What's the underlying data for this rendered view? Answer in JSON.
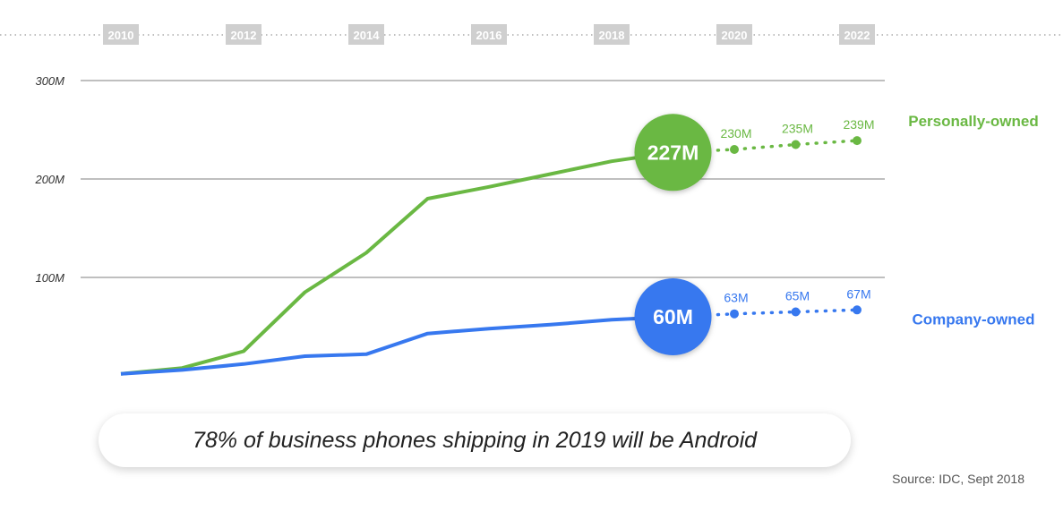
{
  "chart_data": {
    "type": "line",
    "title": "",
    "xlabel": "",
    "ylabel": "",
    "x_tick_labels": [
      "2010",
      "2012",
      "2014",
      "2016",
      "2018",
      "2020",
      "2022"
    ],
    "y_tick_labels": [
      "100M",
      "200M",
      "300M"
    ],
    "y_ticks": [
      100,
      200,
      300
    ],
    "ylim": [
      0,
      300
    ],
    "xlim": [
      2010,
      2022
    ],
    "x_axis_position": "top",
    "grid": true,
    "legend_placement": "right",
    "series": [
      {
        "name": "Personally-owned",
        "color": "#6ab843",
        "x": [
          2010,
          2011,
          2012,
          2013,
          2014,
          2015,
          2016,
          2017,
          2018,
          2019
        ],
        "values": [
          2,
          8,
          25,
          85,
          125,
          180,
          192,
          205,
          218,
          227
        ],
        "highlight": {
          "x": 2019,
          "value": 227,
          "label": "227M"
        },
        "forecast": {
          "x": [
            2020,
            2021,
            2022
          ],
          "values": [
            230,
            235,
            239
          ],
          "labels": [
            "230M",
            "235M",
            "239M"
          ]
        }
      },
      {
        "name": "Company-owned",
        "color": "#3778ef",
        "x": [
          2010,
          2011,
          2012,
          2013,
          2014,
          2015,
          2016,
          2017,
          2018,
          2019
        ],
        "values": [
          2,
          6,
          12,
          20,
          22,
          43,
          48,
          52,
          57,
          60
        ],
        "highlight": {
          "x": 2019,
          "value": 60,
          "label": "60M"
        },
        "forecast": {
          "x": [
            2020,
            2021,
            2022
          ],
          "values": [
            63,
            65,
            67
          ],
          "labels": [
            "63M",
            "65M",
            "67M"
          ]
        }
      }
    ]
  },
  "banner": "78% of business phones shipping in 2019 will be Android",
  "source": "Source: IDC, Sept 2018"
}
